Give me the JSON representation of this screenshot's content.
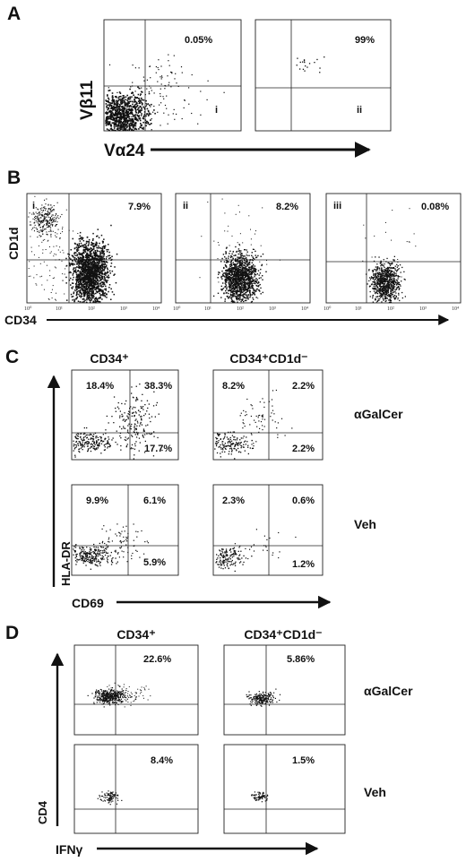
{
  "panels": {
    "A": {
      "letter": "A",
      "y_label": "Vβ11",
      "x_label": "Vα24",
      "plots": [
        {
          "id": "i",
          "numeral": "i",
          "top_right": "0.05%"
        },
        {
          "id": "ii",
          "numeral": "ii",
          "top_right": "99%"
        }
      ]
    },
    "B": {
      "letter": "B",
      "y_label": "CD1d",
      "x_label": "CD34",
      "plots": [
        {
          "id": "i",
          "numeral": "i",
          "top_right": "7.9%"
        },
        {
          "id": "ii",
          "numeral": "ii",
          "top_right": "8.2%"
        },
        {
          "id": "iii",
          "numeral": "iii",
          "top_right": "0.08%"
        }
      ]
    },
    "C": {
      "letter": "C",
      "col_headers": [
        "CD34⁺",
        "CD34⁺CD1d⁻"
      ],
      "row_labels": [
        "αGalCer",
        "Veh"
      ],
      "y_label": "HLA-DR",
      "x_label": "CD69",
      "plots": [
        {
          "ul": "18.4%",
          "ur": "38.3%",
          "lr": "17.7%"
        },
        {
          "ul": "8.2%",
          "ur": "2.2%",
          "lr": "2.2%"
        },
        {
          "ul": "9.9%",
          "ur": "6.1%",
          "lr": "5.9%"
        },
        {
          "ul": "2.3%",
          "ur": "0.6%",
          "lr": "1.2%"
        }
      ]
    },
    "D": {
      "letter": "D",
      "col_headers": [
        "CD34⁺",
        "CD34⁺CD1d⁻"
      ],
      "row_labels": [
        "αGalCer",
        "Veh"
      ],
      "y_label": "CD4",
      "x_label": "IFNγ",
      "plots": [
        {
          "ur": "22.6%"
        },
        {
          "ur": "5.86%"
        },
        {
          "ur": "8.4%"
        },
        {
          "ur": "1.5%"
        }
      ]
    }
  },
  "ticks": [
    "10⁰",
    "10¹",
    "10²",
    "10³",
    "10⁴"
  ]
}
